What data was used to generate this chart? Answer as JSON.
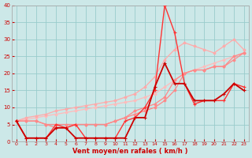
{
  "xlabel": "Vent moyen/en rafales ( km/h )",
  "background_color": "#cce8e8",
  "grid_color": "#99cccc",
  "x": [
    0,
    1,
    2,
    3,
    4,
    5,
    6,
    7,
    8,
    9,
    10,
    11,
    12,
    13,
    14,
    15,
    16,
    17,
    18,
    19,
    20,
    21,
    22,
    23
  ],
  "line_reg1": [
    6,
    6.5,
    7,
    7.5,
    8,
    8.5,
    9,
    9.5,
    10,
    10.5,
    11,
    11.5,
    12,
    13,
    14,
    16,
    18,
    20,
    21,
    22,
    23,
    24,
    25,
    26
  ],
  "line_reg2": [
    6,
    7,
    7.5,
    8,
    9,
    9.5,
    10,
    10.5,
    11,
    11.5,
    12,
    13,
    14,
    16,
    19,
    24,
    27,
    29,
    28,
    27,
    26,
    28,
    30,
    27
  ],
  "line_med1": [
    6,
    6,
    6,
    5,
    5,
    5,
    5,
    5,
    5,
    5,
    6,
    7,
    9,
    10,
    11,
    13,
    18,
    20,
    21,
    21,
    22,
    22,
    24,
    26
  ],
  "line_med2": [
    6,
    6,
    6,
    5,
    4,
    4,
    5,
    5,
    5,
    5,
    6,
    7,
    8,
    9,
    10,
    12,
    15,
    20,
    21,
    21,
    22,
    22,
    25,
    26
  ],
  "line_dark1": [
    6,
    1,
    1,
    1,
    5,
    4,
    5,
    1,
    1,
    1,
    1,
    6,
    7,
    10,
    15,
    40,
    32,
    17,
    11,
    12,
    12,
    12,
    17,
    16
  ],
  "line_dark2": [
    6,
    1,
    1,
    1,
    4,
    4,
    1,
    1,
    1,
    1,
    1,
    1,
    7,
    7,
    16,
    23,
    17,
    17,
    12,
    12,
    12,
    14,
    17,
    15
  ],
  "line_reg1_color": "#ffbbbb",
  "line_reg2_color": "#ffaaaa",
  "line_med1_color": "#ff8888",
  "line_med2_color": "#ff8888",
  "line_dark1_color": "#ff3333",
  "line_dark2_color": "#cc0000",
  "ylim": [
    0,
    40
  ],
  "yticks": [
    0,
    5,
    10,
    15,
    20,
    25,
    30,
    35,
    40
  ],
  "xticks": [
    0,
    1,
    2,
    3,
    4,
    5,
    6,
    7,
    8,
    9,
    10,
    11,
    12,
    13,
    14,
    15,
    16,
    17,
    18,
    19,
    20,
    21,
    22,
    23
  ],
  "xlabel_color": "#cc0000",
  "tick_color": "#cc0000"
}
